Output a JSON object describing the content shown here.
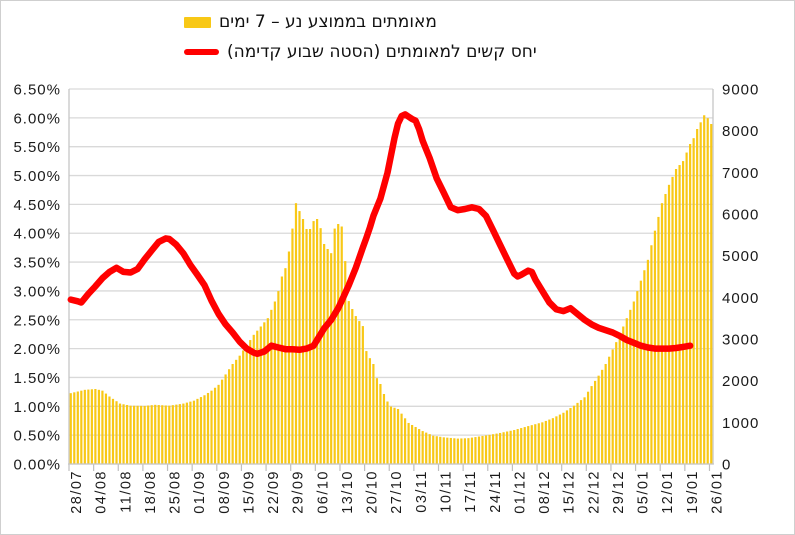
{
  "colors": {
    "background": "#FFFFFF",
    "grid": "#D9D9D9",
    "axis_line": "#C6C6C6",
    "tick": "#BFBFBF",
    "text": "#1A1A1A",
    "bar": "#F8C816",
    "line": "#FF0000"
  },
  "chart_data": {
    "type": "combo",
    "title": "",
    "legend_position": "top",
    "grid": "horizontal",
    "x": {
      "n_points": 183,
      "days_per_tick": 7,
      "tick_labels": [
        "28/07",
        "04/08",
        "11/08",
        "18/08",
        "25/08",
        "01/09",
        "08/09",
        "15/09",
        "22/09",
        "29/09",
        "06/10",
        "13/10",
        "20/10",
        "27/10",
        "03/11",
        "10/11",
        "17/11",
        "24/11",
        "01/12",
        "08/12",
        "15/12",
        "22/12",
        "29/12",
        "05/01",
        "12/01",
        "19/01",
        "26/01"
      ]
    },
    "left_axis": {
      "min": 0,
      "max": 6.5,
      "step": 0.5,
      "unit": "%",
      "labels": [
        "6.50%",
        "6.00%",
        "5.50%",
        "5.00%",
        "4.50%",
        "4.00%",
        "3.50%",
        "3.00%",
        "2.50%",
        "2.00%",
        "1.50%",
        "1.00%",
        "0.50%",
        "0.00%"
      ]
    },
    "right_axis": {
      "min": 0,
      "max": 9000,
      "step": 1000,
      "labels": [
        "9000",
        "8000",
        "7000",
        "6000",
        "5000",
        "4000",
        "3000",
        "2000",
        "1000",
        "0"
      ]
    },
    "series": [
      {
        "name": "מאומתים בממוצע נע – 7 ימים",
        "type": "bar",
        "axis": "right",
        "color": "#F8C816",
        "points": [
          [
            0,
            1700
          ],
          [
            2,
            1740
          ],
          [
            4,
            1780
          ],
          [
            7,
            1800
          ],
          [
            9,
            1760
          ],
          [
            11,
            1620
          ],
          [
            14,
            1450
          ],
          [
            17,
            1400
          ],
          [
            21,
            1395
          ],
          [
            24,
            1420
          ],
          [
            28,
            1400
          ],
          [
            32,
            1450
          ],
          [
            35,
            1520
          ],
          [
            38,
            1650
          ],
          [
            40,
            1760
          ],
          [
            42,
            1900
          ],
          [
            44,
            2150
          ],
          [
            46,
            2400
          ],
          [
            48,
            2600
          ],
          [
            50,
            2850
          ],
          [
            52,
            3100
          ],
          [
            54,
            3300
          ],
          [
            56,
            3500
          ],
          [
            58,
            3900
          ],
          [
            59,
            4150
          ],
          [
            60,
            4500
          ],
          [
            61,
            4700
          ],
          [
            62,
            5100
          ],
          [
            63,
            5650
          ],
          [
            64,
            6260
          ],
          [
            65,
            6070
          ],
          [
            66,
            5880
          ],
          [
            67,
            5640
          ],
          [
            68,
            5640
          ],
          [
            69,
            5830
          ],
          [
            70,
            5880
          ],
          [
            71,
            5660
          ],
          [
            72,
            5280
          ],
          [
            73,
            5160
          ],
          [
            74,
            5060
          ],
          [
            75,
            5650
          ],
          [
            76,
            5760
          ],
          [
            77,
            5700
          ],
          [
            78,
            4870
          ],
          [
            79,
            3910
          ],
          [
            80,
            3720
          ],
          [
            81,
            3550
          ],
          [
            82,
            3430
          ],
          [
            83,
            3310
          ],
          [
            84,
            2710
          ],
          [
            85,
            2540
          ],
          [
            86,
            2400
          ],
          [
            87,
            2060
          ],
          [
            88,
            1920
          ],
          [
            89,
            1680
          ],
          [
            90,
            1500
          ],
          [
            91,
            1380
          ],
          [
            93,
            1320
          ],
          [
            96,
            985
          ],
          [
            100,
            790
          ],
          [
            103,
            680
          ],
          [
            106,
            640
          ],
          [
            110,
            610
          ],
          [
            113,
            620
          ],
          [
            116,
            660
          ],
          [
            119,
            700
          ],
          [
            122,
            745
          ],
          [
            126,
            815
          ],
          [
            130,
            910
          ],
          [
            134,
            1000
          ],
          [
            137,
            1100
          ],
          [
            140,
            1230
          ],
          [
            143,
            1400
          ],
          [
            146,
            1600
          ],
          [
            148,
            1870
          ],
          [
            150,
            2120
          ],
          [
            152,
            2400
          ],
          [
            154,
            2750
          ],
          [
            156,
            3100
          ],
          [
            158,
            3500
          ],
          [
            160,
            3900
          ],
          [
            162,
            4400
          ],
          [
            164,
            4900
          ],
          [
            166,
            5600
          ],
          [
            168,
            6260
          ],
          [
            170,
            6700
          ],
          [
            172,
            7080
          ],
          [
            174,
            7270
          ],
          [
            176,
            7680
          ],
          [
            177,
            7820
          ],
          [
            178,
            8040
          ],
          [
            179,
            8200
          ],
          [
            180,
            8370
          ],
          [
            181,
            8300
          ],
          [
            182,
            8160
          ]
        ]
      },
      {
        "name": "יחס קשים למאומתים (הסטה שבוע קדימה)",
        "type": "line",
        "axis": "left",
        "color": "#FF0000",
        "stroke_width": 6.5,
        "points": [
          [
            0,
            2.85
          ],
          [
            2,
            2.82
          ],
          [
            3,
            2.8
          ],
          [
            5,
            2.95
          ],
          [
            7,
            3.08
          ],
          [
            9,
            3.22
          ],
          [
            11,
            3.33
          ],
          [
            13,
            3.4
          ],
          [
            15,
            3.33
          ],
          [
            17,
            3.32
          ],
          [
            19,
            3.38
          ],
          [
            21,
            3.55
          ],
          [
            23,
            3.7
          ],
          [
            25,
            3.85
          ],
          [
            27,
            3.91
          ],
          [
            28,
            3.9
          ],
          [
            30,
            3.8
          ],
          [
            32,
            3.65
          ],
          [
            34,
            3.45
          ],
          [
            36,
            3.28
          ],
          [
            38,
            3.1
          ],
          [
            40,
            2.83
          ],
          [
            42,
            2.6
          ],
          [
            44,
            2.42
          ],
          [
            46,
            2.28
          ],
          [
            48,
            2.12
          ],
          [
            50,
            2.0
          ],
          [
            52,
            1.93
          ],
          [
            53,
            1.91
          ],
          [
            55,
            1.95
          ],
          [
            57,
            2.05
          ],
          [
            59,
            2.02
          ],
          [
            61,
            1.99
          ],
          [
            63,
            1.99
          ],
          [
            65,
            1.98
          ],
          [
            67,
            2.0
          ],
          [
            69,
            2.05
          ],
          [
            70,
            2.15
          ],
          [
            71,
            2.25
          ],
          [
            72,
            2.35
          ],
          [
            74,
            2.5
          ],
          [
            76,
            2.7
          ],
          [
            77,
            2.83
          ],
          [
            79,
            3.1
          ],
          [
            81,
            3.4
          ],
          [
            83,
            3.75
          ],
          [
            84,
            3.92
          ],
          [
            85,
            4.1
          ],
          [
            86,
            4.3
          ],
          [
            88,
            4.6
          ],
          [
            90,
            5.05
          ],
          [
            91,
            5.35
          ],
          [
            92,
            5.65
          ],
          [
            93,
            5.9
          ],
          [
            94,
            6.03
          ],
          [
            95,
            6.06
          ],
          [
            96,
            6.02
          ],
          [
            97,
            5.98
          ],
          [
            98,
            5.95
          ],
          [
            99,
            5.8
          ],
          [
            100,
            5.6
          ],
          [
            102,
            5.3
          ],
          [
            104,
            4.95
          ],
          [
            106,
            4.7
          ],
          [
            108,
            4.45
          ],
          [
            110,
            4.4
          ],
          [
            112,
            4.42
          ],
          [
            114,
            4.45
          ],
          [
            116,
            4.42
          ],
          [
            118,
            4.3
          ],
          [
            120,
            4.05
          ],
          [
            122,
            3.8
          ],
          [
            124,
            3.55
          ],
          [
            126,
            3.3
          ],
          [
            127,
            3.25
          ],
          [
            128,
            3.28
          ],
          [
            130,
            3.35
          ],
          [
            131,
            3.33
          ],
          [
            132,
            3.2
          ],
          [
            134,
            3.0
          ],
          [
            136,
            2.8
          ],
          [
            138,
            2.68
          ],
          [
            140,
            2.65
          ],
          [
            142,
            2.7
          ],
          [
            144,
            2.6
          ],
          [
            146,
            2.5
          ],
          [
            148,
            2.42
          ],
          [
            150,
            2.36
          ],
          [
            152,
            2.32
          ],
          [
            154,
            2.28
          ],
          [
            156,
            2.22
          ],
          [
            158,
            2.15
          ],
          [
            160,
            2.1
          ],
          [
            162,
            2.05
          ],
          [
            164,
            2.02
          ],
          [
            166,
            2.0
          ],
          [
            168,
            2.0
          ],
          [
            170,
            2.0
          ],
          [
            172,
            2.01
          ],
          [
            174,
            2.03
          ],
          [
            176,
            2.05
          ]
        ]
      }
    ]
  }
}
